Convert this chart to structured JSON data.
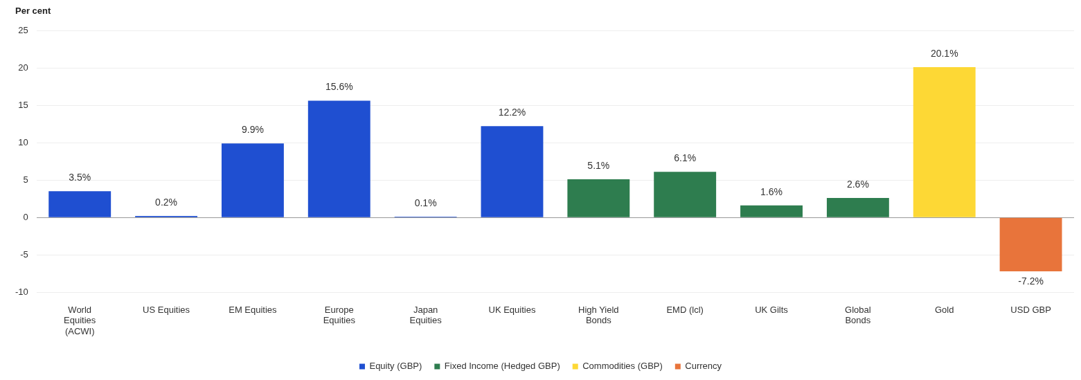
{
  "chart_data": {
    "type": "bar",
    "ylabel": "Per cent",
    "categories": [
      "World Equities (ACWI)",
      "US Equities",
      "EM Equities",
      "Europe Equities",
      "Japan Equities",
      "UK Equities",
      "High Yield Bonds",
      "EMD (lcl)",
      "UK Gilts",
      "Global Bonds",
      "Gold",
      "USD GBP"
    ],
    "series": [
      {
        "name": "Equity (GBP)",
        "color": "#1f4fd1",
        "values": [
          3.5,
          0.2,
          9.9,
          15.6,
          0.1,
          12.2,
          null,
          null,
          null,
          null,
          null,
          null
        ],
        "value_labels": [
          "3.5%",
          "0.2%",
          "9.9%",
          "15.6%",
          "0.1%",
          "12.2%",
          null,
          null,
          null,
          null,
          null,
          null
        ]
      },
      {
        "name": "Fixed Income (Hedged GBP)",
        "color": "#2e7d4f",
        "values": [
          null,
          null,
          null,
          null,
          null,
          null,
          5.1,
          6.1,
          1.6,
          2.6,
          null,
          null
        ],
        "value_labels": [
          null,
          null,
          null,
          null,
          null,
          null,
          "5.1%",
          "6.1%",
          "1.6%",
          "2.6%",
          null,
          null
        ]
      },
      {
        "name": "Commodities (GBP)",
        "color": "#fdd835",
        "values": [
          null,
          null,
          null,
          null,
          null,
          null,
          null,
          null,
          null,
          null,
          20.1,
          null
        ],
        "value_labels": [
          null,
          null,
          null,
          null,
          null,
          null,
          null,
          null,
          null,
          null,
          "20.1%",
          null
        ]
      },
      {
        "name": "Currency",
        "color": "#e8743b",
        "values": [
          null,
          null,
          null,
          null,
          null,
          null,
          null,
          null,
          null,
          null,
          null,
          -7.2
        ],
        "value_labels": [
          null,
          null,
          null,
          null,
          null,
          null,
          null,
          null,
          null,
          null,
          null,
          "-7.2%"
        ]
      }
    ],
    "ylim": [
      -10,
      25
    ],
    "yticks": [
      -10,
      -5,
      0,
      5,
      10,
      15,
      20,
      25
    ],
    "grid": "y",
    "legend": "bottom"
  }
}
